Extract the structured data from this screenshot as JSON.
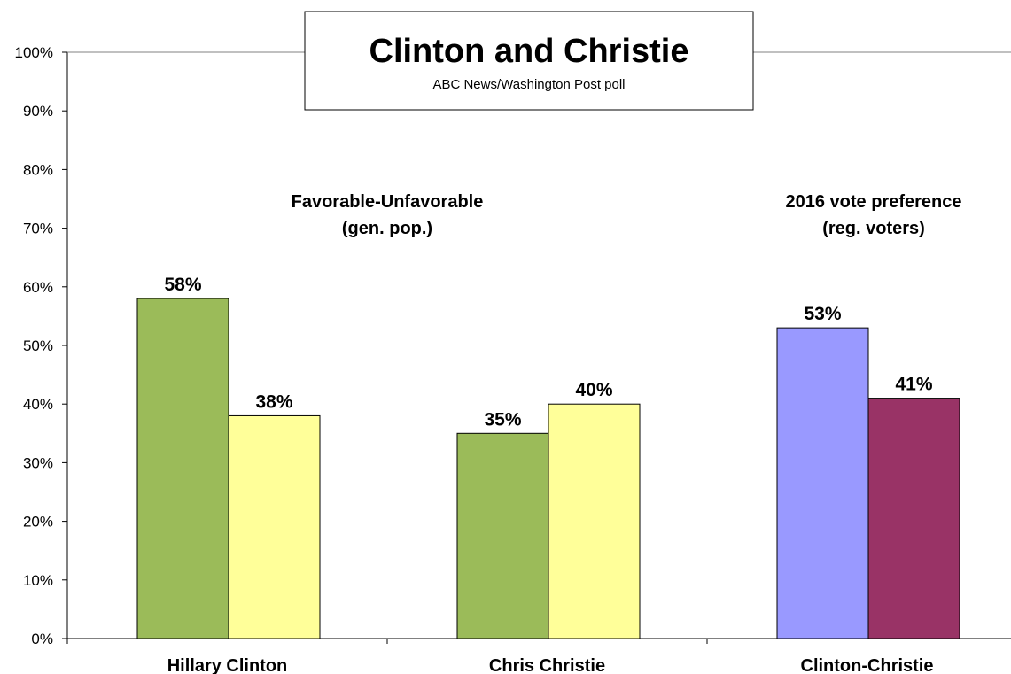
{
  "chart_data": {
    "type": "bar",
    "title": "Clinton and Christie",
    "subtitle": "ABC News/Washington  Post poll",
    "xlabel": "",
    "ylabel": "",
    "ylim": [
      0,
      100
    ],
    "y_ticks": [
      "0%",
      "10%",
      "20%",
      "30%",
      "40%",
      "50%",
      "60%",
      "70%",
      "80%",
      "90%",
      "100%"
    ],
    "grid": false,
    "legend": "none",
    "categories": [
      "Hillary Clinton",
      "Chris Christie",
      "Clinton-Christie"
    ],
    "section_labels": [
      {
        "lines": [
          "Favorable-Unfavorable",
          "(gen. pop.)"
        ]
      },
      {
        "lines": [
          "2016 vote preference",
          "(reg. voters)"
        ]
      }
    ],
    "bars": [
      {
        "category": "Hillary Clinton",
        "value": 58,
        "label": "58%",
        "color": "#9bbb59"
      },
      {
        "category": "Hillary Clinton",
        "value": 38,
        "label": "38%",
        "color": "#ffff99"
      },
      {
        "category": "Chris Christie",
        "value": 35,
        "label": "35%",
        "color": "#9bbb59"
      },
      {
        "category": "Chris Christie",
        "value": 40,
        "label": "40%",
        "color": "#ffff99"
      },
      {
        "category": "Clinton-Christie",
        "value": 53,
        "label": "53%",
        "color": "#9999ff"
      },
      {
        "category": "Clinton-Christie",
        "value": 41,
        "label": "41%",
        "color": "#993366"
      }
    ]
  }
}
